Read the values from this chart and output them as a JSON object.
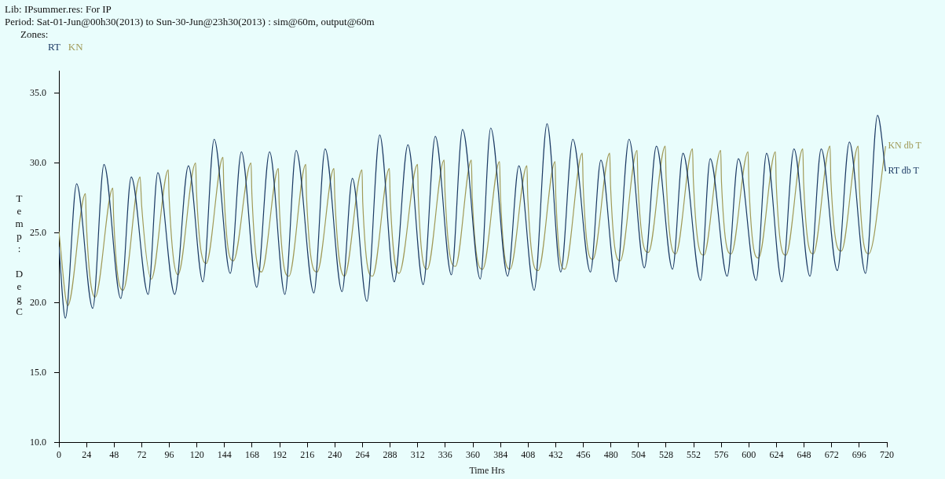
{
  "chart_data": {
    "type": "line",
    "title": "Lib: IPsummer.res: For IP",
    "subtitle": "Period: Sat-01-Jun@00h30(2013) to Sun-30-Jun@23h30(2013) : sim@60m, output@60m",
    "legend_title": "Zones:",
    "annotations": [
      "RT",
      "KN"
    ],
    "xlabel": "Time Hrs",
    "ylabel": "Temp: DegC",
    "xlim": [
      0,
      720
    ],
    "xticks": [
      0,
      24,
      48,
      72,
      96,
      120,
      144,
      168,
      192,
      216,
      240,
      264,
      288,
      312,
      336,
      360,
      384,
      408,
      432,
      456,
      480,
      504,
      528,
      552,
      576,
      600,
      624,
      648,
      672,
      696,
      720
    ],
    "ylim": [
      10,
      36.6
    ],
    "yticks": [
      {
        "value": 10,
        "label": "10.0"
      },
      {
        "value": 15,
        "label": "15.0"
      },
      {
        "value": 20,
        "label": "20.0"
      },
      {
        "value": 25,
        "label": "25.0"
      },
      {
        "value": 30,
        "label": "30.0"
      },
      {
        "value": 35,
        "label": "35.0"
      }
    ],
    "grid": false,
    "marker": "none",
    "line_style": "solid",
    "series": [
      {
        "name": "RT db T",
        "color": "#1c3a64",
        "x": [
          0,
          5.6,
          15.4,
          29.4,
          39.2,
          53.8,
          62.9,
          77.6,
          86,
          100.7,
          112.6,
          125.2,
          135,
          149,
          158.7,
          172,
          183.2,
          196.5,
          206.3,
          221.7,
          231.5,
          246.2,
          255.2,
          267.8,
          279,
          291.6,
          303.5,
          316.8,
          327.3,
          341.3,
          351,
          366.4,
          375.5,
          390.2,
          400,
          413.3,
          424.5,
          436.4,
          446.9,
          462.2,
          471.3,
          484.6,
          495.8,
          509.1,
          519.6,
          533.6,
          542.7,
          558,
          566.4,
          581.1,
          590.9,
          606.3,
          615.4,
          628.7,
          639.2,
          653.1,
          662.9,
          676.9,
          687.4,
          701.4,
          711.9,
          718.9
        ],
        "values": [
          24.0,
          18.9,
          28.5,
          19.6,
          29.9,
          20.3,
          29.0,
          20.6,
          29.3,
          20.6,
          29.8,
          21.5,
          31.7,
          22.1,
          30.8,
          21.1,
          30.8,
          20.6,
          30.9,
          20.7,
          31.0,
          20.8,
          28.9,
          20.1,
          32.0,
          21.5,
          31.3,
          21.3,
          31.9,
          22.0,
          32.4,
          21.7,
          32.5,
          21.9,
          29.8,
          20.9,
          32.8,
          22.2,
          31.7,
          22.2,
          30.2,
          21.5,
          31.7,
          22.5,
          31.2,
          22.4,
          30.7,
          21.6,
          30.3,
          21.9,
          30.3,
          21.6,
          30.7,
          21.5,
          31.0,
          21.9,
          31.0,
          22.3,
          31.5,
          22.1,
          33.4,
          29.4
        ]
      },
      {
        "name": "KN db T",
        "color": "#a09a58",
        "x": [
          0,
          7.7,
          23.1,
          23.8,
          31.5,
          46.9,
          47.6,
          55.9,
          70.6,
          72,
          80.4,
          95.1,
          95.8,
          103.5,
          118.9,
          119.6,
          128,
          142.7,
          143.4,
          151.7,
          167.1,
          167.8,
          176.2,
          190.9,
          191.5,
          200,
          214.7,
          215.3,
          224.5,
          239.2,
          239.9,
          248.3,
          263.6,
          264.2,
          272.7,
          287.4,
          288.1,
          295.8,
          311.9,
          312.5,
          320.3,
          335,
          335.7,
          344.8,
          358.7,
          359.4,
          368.5,
          383.2,
          383.9,
          392.3,
          407,
          407.7,
          416.8,
          431.5,
          432.1,
          439.9,
          455.2,
          455.9,
          464.3,
          479,
          479.7,
          488.1,
          502.8,
          503.5,
          512.6,
          527.3,
          528,
          536.4,
          551,
          551.7,
          560.8,
          575.5,
          576.2,
          584.6,
          599.3,
          600,
          608.4,
          623.1,
          623.8,
          632.2,
          646.9,
          647.6,
          656,
          670.6,
          671.3,
          680.4,
          695.1,
          695.8,
          704.2,
          718.9
        ],
        "values": [
          25.1,
          19.8,
          27.8,
          25.8,
          20.4,
          28.2,
          26.1,
          20.9,
          29.0,
          26.9,
          21.7,
          29.5,
          27.6,
          22.0,
          30.0,
          28.0,
          22.8,
          30.4,
          28.2,
          23.0,
          30.0,
          27.8,
          22.2,
          29.6,
          27.2,
          21.9,
          29.9,
          27.6,
          22.2,
          29.6,
          27.6,
          21.9,
          29.5,
          27.2,
          21.9,
          29.6,
          27.5,
          22.1,
          29.9,
          27.6,
          22.4,
          30.2,
          28.0,
          22.6,
          30.2,
          27.6,
          22.4,
          30.1,
          27.8,
          22.4,
          29.8,
          27.6,
          22.3,
          30.1,
          27.6,
          22.4,
          30.7,
          28.4,
          23.1,
          30.7,
          28.4,
          23.0,
          30.9,
          28.6,
          23.6,
          31.2,
          29.0,
          23.5,
          31.0,
          28.8,
          23.4,
          30.9,
          28.6,
          23.5,
          30.8,
          28.5,
          23.2,
          30.8,
          28.5,
          23.4,
          31.0,
          28.6,
          23.5,
          31.2,
          28.8,
          23.7,
          31.2,
          28.8,
          23.5,
          31.2
        ]
      }
    ]
  }
}
